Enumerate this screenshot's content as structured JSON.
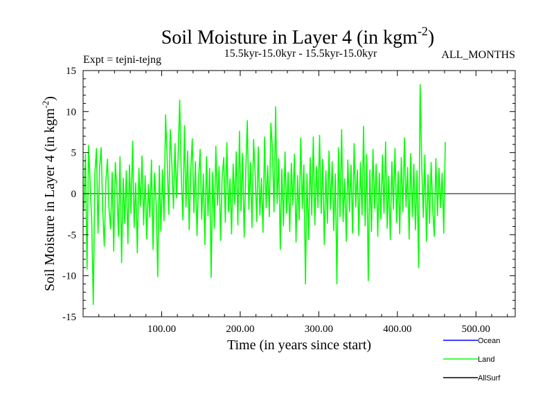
{
  "chart_data": {
    "type": "line",
    "title": "Soil Moisture in Layer 4 (in kgm",
    "title_superscript": "-2",
    "title_close": ")",
    "subtitle_left": "Expt = tejni-tejng",
    "subtitle_center": "15.5kyr-15.0kyr - 15.5kyr-15.0kyr",
    "subtitle_right": "ALL_MONTHS",
    "xlabel": "Time (in years since start)",
    "ylabel": "Soil Moisture in Layer 4 (in kgm",
    "ylabel_superscript": "-2",
    "ylabel_close": ")",
    "xlim": [
      0,
      550
    ],
    "ylim": [
      -15,
      15
    ],
    "xticks": [
      100,
      200,
      300,
      400,
      500
    ],
    "xtick_labels": [
      "100.00",
      "200.00",
      "300.00",
      "400.00",
      "500.00"
    ],
    "yticks": [
      -15,
      -10,
      -5,
      0,
      5,
      10,
      15
    ],
    "ytick_labels": [
      "-15",
      "-10",
      "-5",
      "0",
      "5",
      "10",
      "15"
    ],
    "legend": [
      {
        "name": "Ocean",
        "color": "#0000ff"
      },
      {
        "name": "Land",
        "color": "#00ff00"
      },
      {
        "name": "AllSurf",
        "color": "#000000"
      }
    ],
    "series": [
      {
        "name": "Land",
        "color": "#00ff00",
        "x_start": 1,
        "x_step": 2,
        "values": [
          -2.1,
          4.8,
          -9.2,
          5.9,
          1.2,
          -3.5,
          -13.5,
          2.4,
          5.5,
          -4.8,
          3.2,
          5.6,
          -2.2,
          -6.4,
          1.5,
          4.2,
          -1.8,
          -4.3,
          2.6,
          -7.0,
          3.8,
          0.6,
          -5.2,
          4.5,
          -8.4,
          1.9,
          -3.6,
          2.8,
          -6.1,
          3.5,
          -2.4,
          6.4,
          -4.1,
          1.3,
          -7.2,
          3.1,
          -1.5,
          4.6,
          -3.8,
          2.2,
          -5.5,
          1.1,
          -2.9,
          4.1,
          -6.8,
          2.5,
          -1.1,
          -10.1,
          3.4,
          -4.6,
          2.9,
          -3.3,
          9.6,
          4.2,
          -2.5,
          7.8,
          3.5,
          -1.8,
          6.1,
          -0.5,
          4.7,
          11.4,
          2.1,
          -3.2,
          8.3,
          -1.6,
          5.2,
          -4.4,
          2.8,
          6.7,
          -2.3,
          3.9,
          -5.1,
          1.6,
          5.4,
          -3.1,
          2.4,
          -6.2,
          4.5,
          -2.7,
          3.1,
          -10.2,
          2.6,
          -4.2,
          5.8,
          -1.4,
          3.3,
          -5.7,
          2.1,
          4.4,
          -3.5,
          6.2,
          -2.2,
          1.8,
          -4.9,
          3.6,
          -1.3,
          5.1,
          -3.8,
          7.6,
          -2.1,
          4.9,
          -5.3,
          2.7,
          8.9,
          -1.9,
          3.8,
          -4.1,
          6.6,
          2.3,
          -3.4,
          5.7,
          -2.6,
          1.9,
          -4.7,
          6.9,
          -1.7,
          3.4,
          -2.8,
          8.6,
          5.5,
          -2.2,
          10.6,
          -1.2,
          4.3,
          -6.8,
          3.0,
          -3.9,
          5.1,
          -2.4,
          2.6,
          -4.6,
          3.7,
          -1.4,
          4.8,
          -5.9,
          2.2,
          -3.2,
          6.8,
          -1.8,
          3.5,
          -11.0,
          2.4,
          -5.6,
          4.4,
          -2.6,
          6.9,
          -3.8,
          3.3,
          -1.7,
          7.1,
          -2.4,
          4.2,
          -6.2,
          2.8,
          -3.6,
          5.2,
          -1.9,
          3.9,
          -4.5,
          2.4,
          -11.0,
          5.6,
          -2.8,
          7.8,
          -3.4,
          1.8,
          -5.8,
          4.1,
          -2.2,
          3.5,
          -4.8,
          6.1,
          -1.6,
          2.9,
          -5.1,
          3.8,
          -2.6,
          8.2,
          -3.9,
          4.8,
          -10.6,
          2.9,
          -4.6,
          5.4,
          -1.8,
          3.6,
          -5.2,
          2.5,
          -3.1,
          4.7,
          -2.4,
          6.3,
          -4.2,
          2.1,
          -5.6,
          3.9,
          -1.9,
          5.5,
          -3.5,
          2.7,
          -4.9,
          4.4,
          -2.2,
          6.8,
          -1.6,
          3.2,
          -5.5,
          4.9,
          -2.8,
          3.6,
          -4.4,
          2.8,
          -9.0,
          13.3,
          3.4,
          -2.9,
          4.7,
          -5.8,
          2.3,
          -3.6,
          3.8,
          -1.9,
          -5.2,
          4.3,
          -2.7,
          3.1,
          -1.7,
          2.5,
          -4.8,
          6.3
        ]
      },
      {
        "name": "AllSurf",
        "color": "#000000",
        "values_constant": 0
      }
    ]
  }
}
